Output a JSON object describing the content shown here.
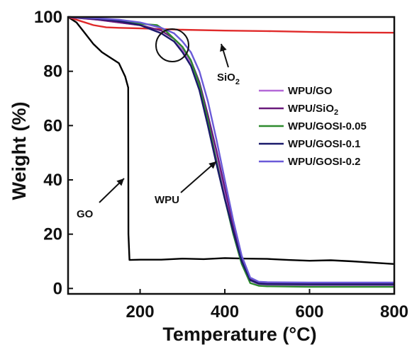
{
  "chart_data": {
    "type": "line",
    "title": "",
    "xlabel": "Temperature (°C)",
    "ylabel": "Weight (%)",
    "xlim": [
      30,
      800
    ],
    "ylim": [
      -2,
      100
    ],
    "xticks": [
      200,
      400,
      600,
      800
    ],
    "xtick_labels": [
      "200",
      "400",
      "600",
      "800"
    ],
    "yticks": [
      0,
      20,
      40,
      60,
      80,
      100
    ],
    "ytick_labels": [
      "0",
      "20",
      "40",
      "60",
      "80",
      "100"
    ],
    "grid": false,
    "legend_position": "right",
    "series": [
      {
        "name": "",
        "color": "#000000",
        "x": [
          30,
          50,
          70,
          90,
          110,
          130,
          150,
          165,
          172,
          172.5,
          175,
          200,
          250,
          300,
          350,
          400,
          450,
          500,
          550,
          600,
          650,
          700,
          750,
          800
        ],
        "y": [
          100,
          98,
          94,
          90,
          87,
          85,
          83,
          78,
          74,
          20,
          10.5,
          10.6,
          10.6,
          11,
          10.8,
          11.2,
          11,
          10.9,
          10.5,
          10.2,
          10.4,
          10,
          9.5,
          9
        ]
      },
      {
        "name": "",
        "color": "#e02a2a",
        "x": [
          30,
          60,
          90,
          120,
          150,
          200,
          300,
          400,
          500,
          600,
          700,
          800
        ],
        "y": [
          100,
          98.5,
          97,
          96.2,
          96,
          95.8,
          95.3,
          95,
          94.8,
          94.5,
          94.3,
          94.2
        ]
      },
      {
        "name": "WPU/GO",
        "color": "#b468d8",
        "x": [
          30,
          100,
          150,
          200,
          250,
          280,
          300,
          320,
          340,
          360,
          380,
          400,
          420,
          440,
          460,
          480,
          500,
          600,
          700,
          800
        ],
        "y": [
          100,
          99,
          98,
          97,
          94,
          91,
          88,
          83,
          74,
          62,
          48,
          35,
          22,
          10,
          3,
          1.5,
          1.2,
          1,
          1,
          1
        ]
      },
      {
        "name": "WPU/SiO2",
        "color": "#6a1a7c",
        "x": [
          30,
          100,
          150,
          200,
          250,
          280,
          300,
          320,
          340,
          360,
          380,
          400,
          420,
          440,
          460,
          480,
          500,
          600,
          700,
          800
        ],
        "y": [
          100,
          99,
          98,
          97,
          95,
          92,
          89,
          84,
          76,
          64,
          51,
          37,
          23,
          11,
          3.5,
          2.2,
          2,
          1.8,
          1.8,
          1.8
        ]
      },
      {
        "name": "WPU/GOSI-0.05",
        "color": "#2e8b2e",
        "x": [
          30,
          100,
          150,
          200,
          240,
          260,
          280,
          300,
          320,
          340,
          360,
          380,
          400,
          420,
          440,
          460,
          480,
          500,
          600,
          700,
          800
        ],
        "y": [
          100,
          99.5,
          98.5,
          97.5,
          97,
          95,
          92,
          89,
          84,
          75,
          62,
          47,
          33,
          20,
          9,
          2,
          1,
          0.8,
          0.6,
          0.6,
          0.6
        ]
      },
      {
        "name": "WPU/GOSI-0.1",
        "color": "#1a1a6a",
        "x": [
          30,
          100,
          150,
          200,
          250,
          280,
          300,
          320,
          340,
          360,
          380,
          400,
          420,
          440,
          460,
          480,
          500,
          600,
          700,
          800
        ],
        "y": [
          100,
          99.3,
          98.5,
          97,
          94,
          91,
          87,
          82,
          73,
          60,
          46,
          33,
          21,
          10,
          3,
          1.8,
          1.6,
          1.5,
          1.5,
          1.5
        ]
      },
      {
        "name": "WPU/GOSI-0.2",
        "color": "#6a5ad8",
        "x": [
          30,
          100,
          150,
          200,
          250,
          280,
          300,
          320,
          340,
          360,
          380,
          400,
          420,
          440,
          460,
          480,
          500,
          600,
          700,
          800
        ],
        "y": [
          100,
          99.5,
          99,
          98,
          96,
          94,
          91,
          87,
          80,
          69,
          55,
          40,
          25,
          12,
          4,
          2.5,
          2.3,
          2.2,
          2.2,
          2.2
        ]
      }
    ],
    "annotations": [
      {
        "text": "GO",
        "x": 95,
        "y": 25
      },
      {
        "text": "WPU",
        "x": 340,
        "y": 29
      },
      {
        "text": "SiO",
        "subscript": "2",
        "x": 285,
        "y": 81
      }
    ]
  }
}
